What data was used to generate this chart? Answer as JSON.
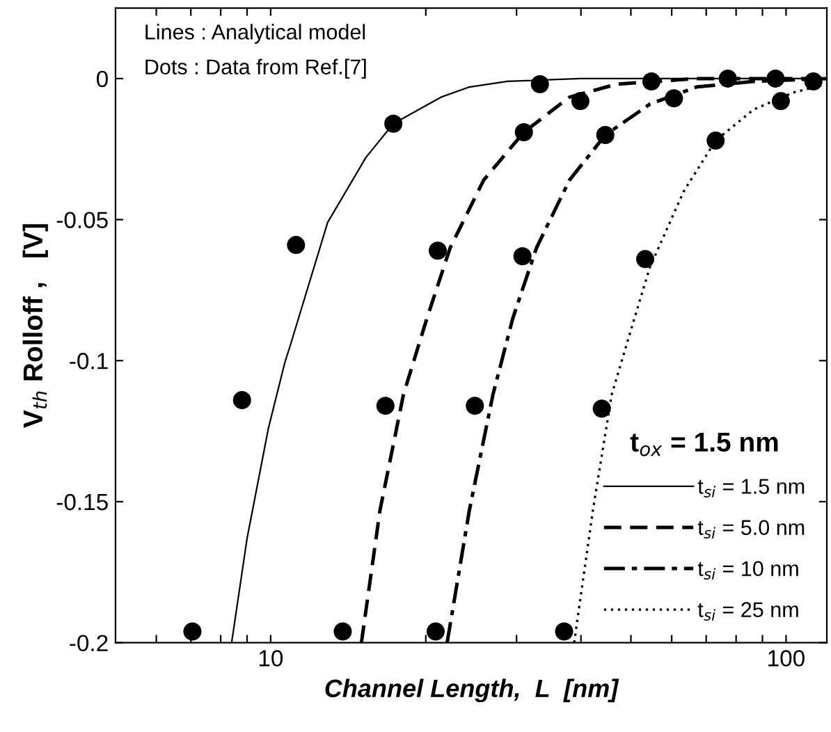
{
  "chart_data": {
    "type": "line",
    "xlabel": "Channel Length,  L  [nm]",
    "ylabel": "V$_{th}$ Rolloff ,   [V]",
    "legend_title": "t$_{ox}$ = 1.5 nm",
    "annotations": [
      "Lines : Analytical model",
      "Dots : Data from Ref.[7]"
    ],
    "log": "x",
    "xlim": [
      5,
      120
    ],
    "ylim": [
      -0.2,
      0.025
    ],
    "xticks": [
      {
        "value": 6,
        "label": null
      },
      {
        "value": 7,
        "label": null
      },
      {
        "value": 8,
        "label": null
      },
      {
        "value": 9,
        "label": null
      },
      10,
      {
        "value": 20,
        "label": null
      },
      {
        "value": 30,
        "label": null
      },
      {
        "value": 40,
        "label": null
      },
      {
        "value": 50,
        "label": null
      },
      {
        "value": 60,
        "label": null
      },
      {
        "value": 70,
        "label": null
      },
      {
        "value": 80,
        "label": null
      },
      {
        "value": 90,
        "label": null
      },
      100
    ],
    "yticks": [
      -0.2,
      -0.15,
      -0.1,
      -0.05,
      0
    ],
    "grid": false,
    "legend": "bottom right",
    "series": [
      {
        "name": "t$_{si}$ = 1.5 nm",
        "color": "#000000",
        "line_style": "solid",
        "x": [
          8.4,
          9.0,
          9.9,
          10.66,
          10.9,
          12.9,
          15.3,
          17.3,
          21.4,
          24.3,
          28.8,
          40,
          120
        ],
        "values": [
          -0.2,
          -0.163,
          -0.124,
          -0.1005,
          -0.095,
          -0.051,
          -0.028,
          -0.016,
          -0.0066,
          -0.003,
          -0.001,
          0,
          0
        ]
      },
      {
        "name": "t$_{si}$ = 5.0 nm",
        "color": "#000000",
        "line_style": "dashed",
        "x": [
          15.0,
          16.3,
          18.1,
          20.1,
          22.3,
          25.9,
          31.0,
          38,
          46.9,
          67,
          120
        ],
        "values": [
          -0.2,
          -0.153,
          -0.112,
          -0.085,
          -0.06,
          -0.036,
          -0.019,
          -0.0066,
          -0.002,
          0,
          0
        ]
      },
      {
        "name": "t$_{si}$ = 10 nm",
        "color": "#000000",
        "line_style": "dashdot",
        "x": [
          22.0,
          24.3,
          27.0,
          29.5,
          32.8,
          38.0,
          44.6,
          54.5,
          67,
          86.5,
          120
        ],
        "values": [
          -0.2,
          -0.153,
          -0.112,
          -0.085,
          -0.06,
          -0.036,
          -0.02,
          -0.009,
          -0.003,
          -0.001,
          0
        ]
      },
      {
        "name": "t$_{si}$ = 25 nm",
        "color": "#000000",
        "line_style": "dotted",
        "x": [
          38.8,
          42.2,
          45.9,
          50.8,
          54.4,
          63.3,
          73,
          86.5,
          103,
          117
        ],
        "values": [
          -0.2,
          -0.153,
          -0.112,
          -0.085,
          -0.067,
          -0.04,
          -0.022,
          -0.011,
          -0.005,
          -0.0025
        ]
      },
      {
        "type": "scatter",
        "marker": "circle",
        "color": "#000000",
        "x": [
          7.05,
          8.8,
          11.2,
          17.3,
          33.3
        ],
        "values": [
          -0.196,
          -0.114,
          -0.059,
          -0.016,
          -0.002
        ]
      },
      {
        "type": "scatter",
        "marker": "circle",
        "color": "#000000",
        "x": [
          13.8,
          16.7,
          21.1,
          31.0,
          39.9,
          54.8
        ],
        "values": [
          -0.196,
          -0.116,
          -0.061,
          -0.019,
          -0.008,
          -0.001
        ]
      },
      {
        "type": "scatter",
        "marker": "circle",
        "color": "#000000",
        "x": [
          20.9,
          24.9,
          30.8,
          44.6,
          60.6,
          77.1,
          95.4
        ],
        "values": [
          -0.196,
          -0.116,
          -0.063,
          -0.02,
          -0.007,
          0,
          0
        ]
      },
      {
        "type": "scatter",
        "marker": "circle",
        "color": "#000000",
        "x": [
          37.1,
          43.9,
          53.3,
          73.0,
          97.7,
          113
        ],
        "values": [
          -0.196,
          -0.117,
          -0.064,
          -0.022,
          -0.008,
          -0.001
        ]
      }
    ]
  }
}
